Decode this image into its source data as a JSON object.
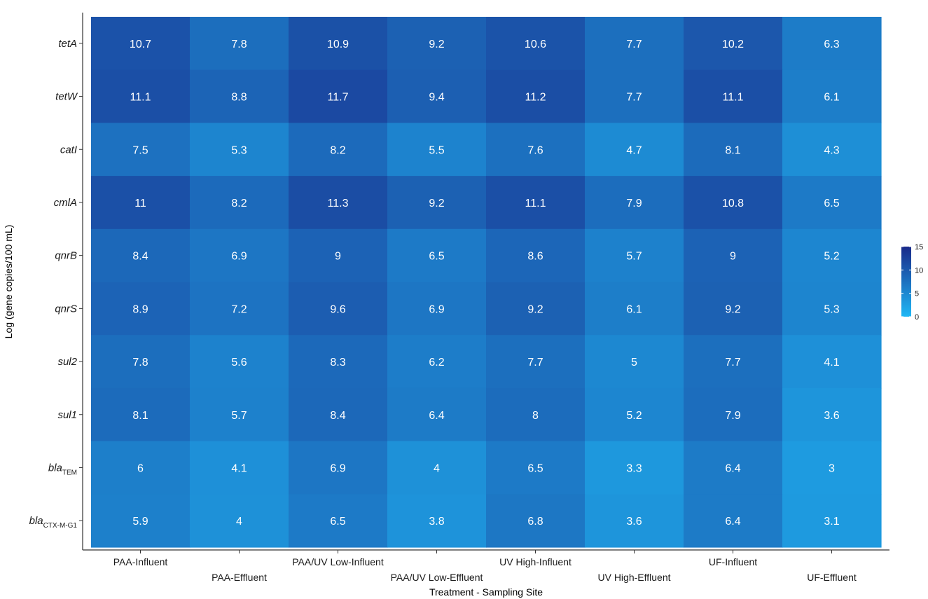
{
  "chart_data": {
    "type": "heatmap",
    "xlabel": "Treatment - Sampling Site",
    "ylabel": "Log (gene copies/100 mL)",
    "columns": [
      "PAA-Influent",
      "PAA-Effluent",
      "PAA/UV Low-Influent",
      "PAA/UV Low-Effluent",
      "UV High-Influent",
      "UV High-Effluent",
      "UF-Influent",
      "UF-Effluent"
    ],
    "rows": [
      {
        "name": "tetA",
        "sub": ""
      },
      {
        "name": "tetW",
        "sub": ""
      },
      {
        "name": "catI",
        "sub": ""
      },
      {
        "name": "cmlA",
        "sub": ""
      },
      {
        "name": "qnrB",
        "sub": ""
      },
      {
        "name": "qnrS",
        "sub": ""
      },
      {
        "name": "sul2",
        "sub": ""
      },
      {
        "name": "sul1",
        "sub": ""
      },
      {
        "name": "bla",
        "sub": "TEM"
      },
      {
        "name": "bla",
        "sub": "CTX-M-G1"
      }
    ],
    "values": [
      [
        10.7,
        7.8,
        10.9,
        9.2,
        10.6,
        7.7,
        10.2,
        6.3
      ],
      [
        11.1,
        8.8,
        11.7,
        9.4,
        11.2,
        7.7,
        11.1,
        6.1
      ],
      [
        7.5,
        5.3,
        8.2,
        5.5,
        7.6,
        4.7,
        8.1,
        4.3
      ],
      [
        11,
        8.2,
        11.3,
        9.2,
        11.1,
        7.9,
        10.8,
        6.5
      ],
      [
        8.4,
        6.9,
        9,
        6.5,
        8.6,
        5.7,
        9,
        5.2
      ],
      [
        8.9,
        7.2,
        9.6,
        6.9,
        9.2,
        6.1,
        9.2,
        5.3
      ],
      [
        7.8,
        5.6,
        8.3,
        6.2,
        7.7,
        5,
        7.7,
        4.1
      ],
      [
        8.1,
        5.7,
        8.4,
        6.4,
        8,
        5.2,
        7.9,
        3.6
      ],
      [
        6,
        4.1,
        6.9,
        4,
        6.5,
        3.3,
        6.4,
        3
      ],
      [
        5.9,
        4,
        6.5,
        3.8,
        6.8,
        3.6,
        6.4,
        3.1
      ]
    ],
    "scale": {
      "min": 0,
      "max": 15,
      "low_color": "#1fb7f5",
      "high_color": "#1a2a8a",
      "ticks": [
        0,
        5,
        10,
        15
      ]
    },
    "grid": false,
    "legend_position": "right"
  }
}
